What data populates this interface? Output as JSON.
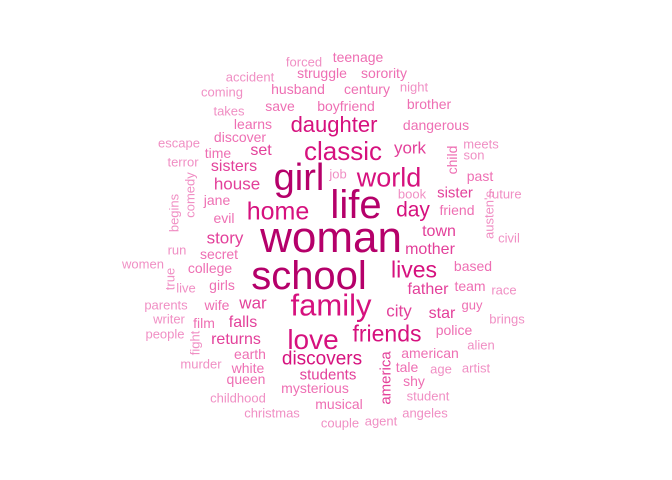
{
  "colors": {
    "dark": "#b5006a",
    "strong": "#d6117e",
    "medium": "#e3409a",
    "light": "#ee6fb3",
    "pale": "#f08fc4"
  },
  "words": [
    {
      "text": "woman",
      "tone": "dark"
    },
    {
      "text": "school",
      "tone": "dark"
    },
    {
      "text": "life",
      "tone": "dark"
    },
    {
      "text": "girl",
      "tone": "dark"
    },
    {
      "text": "family",
      "tone": "strong"
    },
    {
      "text": "world",
      "tone": "strong"
    },
    {
      "text": "classic",
      "tone": "strong"
    },
    {
      "text": "home",
      "tone": "strong"
    },
    {
      "text": "love",
      "tone": "strong"
    },
    {
      "text": "daughter",
      "tone": "strong"
    },
    {
      "text": "friends",
      "tone": "strong"
    },
    {
      "text": "lives",
      "tone": "strong"
    },
    {
      "text": "day",
      "tone": "strong"
    },
    {
      "text": "discovers",
      "tone": "strong"
    },
    {
      "text": "house",
      "tone": "medium"
    },
    {
      "text": "city",
      "tone": "medium"
    },
    {
      "text": "york",
      "tone": "medium"
    },
    {
      "text": "story",
      "tone": "medium"
    },
    {
      "text": "war",
      "tone": "medium"
    },
    {
      "text": "father",
      "tone": "medium"
    },
    {
      "text": "mother",
      "tone": "medium"
    },
    {
      "text": "town",
      "tone": "medium"
    },
    {
      "text": "sisters",
      "tone": "medium"
    },
    {
      "text": "set",
      "tone": "medium"
    },
    {
      "text": "falls",
      "tone": "medium"
    },
    {
      "text": "returns",
      "tone": "medium"
    },
    {
      "text": "star",
      "tone": "medium"
    },
    {
      "text": "america",
      "tone": "medium"
    },
    {
      "text": "sister",
      "tone": "medium"
    },
    {
      "text": "students",
      "tone": "medium"
    },
    {
      "text": "dangerous",
      "tone": "light"
    },
    {
      "text": "boyfriend",
      "tone": "light"
    },
    {
      "text": "save",
      "tone": "light"
    },
    {
      "text": "husband",
      "tone": "light"
    },
    {
      "text": "century",
      "tone": "light"
    },
    {
      "text": "struggle",
      "tone": "light"
    },
    {
      "text": "sorority",
      "tone": "light"
    },
    {
      "text": "teenage",
      "tone": "light"
    },
    {
      "text": "evil",
      "tone": "light"
    },
    {
      "text": "jane",
      "tone": "light"
    },
    {
      "text": "college",
      "tone": "light"
    },
    {
      "text": "girls",
      "tone": "light"
    },
    {
      "text": "secret",
      "tone": "light"
    },
    {
      "text": "wife",
      "tone": "light"
    },
    {
      "text": "friend",
      "tone": "light"
    },
    {
      "text": "based",
      "tone": "light"
    },
    {
      "text": "team",
      "tone": "light"
    },
    {
      "text": "police",
      "tone": "light"
    },
    {
      "text": "tale",
      "tone": "light"
    },
    {
      "text": "american",
      "tone": "light"
    },
    {
      "text": "mysterious",
      "tone": "light"
    },
    {
      "text": "musical",
      "tone": "light"
    },
    {
      "text": "white",
      "tone": "light"
    },
    {
      "text": "earth",
      "tone": "light"
    },
    {
      "text": "queen",
      "tone": "light"
    },
    {
      "text": "shy",
      "tone": "light"
    },
    {
      "text": "past",
      "tone": "light"
    },
    {
      "text": "child",
      "tone": "light"
    },
    {
      "text": "learns",
      "tone": "light"
    },
    {
      "text": "time",
      "tone": "light"
    },
    {
      "text": "discover",
      "tone": "light"
    },
    {
      "text": "brother",
      "tone": "light"
    },
    {
      "text": "film",
      "tone": "light"
    },
    {
      "text": "guy",
      "tone": "light"
    },
    {
      "text": "forced",
      "tone": "pale"
    },
    {
      "text": "accident",
      "tone": "pale"
    },
    {
      "text": "night",
      "tone": "pale"
    },
    {
      "text": "coming",
      "tone": "pale"
    },
    {
      "text": "takes",
      "tone": "pale"
    },
    {
      "text": "escape",
      "tone": "pale"
    },
    {
      "text": "terror",
      "tone": "pale"
    },
    {
      "text": "meets",
      "tone": "pale"
    },
    {
      "text": "son",
      "tone": "pale"
    },
    {
      "text": "job",
      "tone": "pale"
    },
    {
      "text": "book",
      "tone": "pale"
    },
    {
      "text": "future",
      "tone": "pale"
    },
    {
      "text": "austen's",
      "tone": "pale"
    },
    {
      "text": "civil",
      "tone": "pale"
    },
    {
      "text": "comedy",
      "tone": "pale"
    },
    {
      "text": "begins",
      "tone": "pale"
    },
    {
      "text": "run",
      "tone": "pale"
    },
    {
      "text": "women",
      "tone": "pale"
    },
    {
      "text": "true",
      "tone": "pale"
    },
    {
      "text": "live",
      "tone": "pale"
    },
    {
      "text": "parents",
      "tone": "pale"
    },
    {
      "text": "writer",
      "tone": "pale"
    },
    {
      "text": "people",
      "tone": "pale"
    },
    {
      "text": "fight",
      "tone": "pale"
    },
    {
      "text": "murder",
      "tone": "pale"
    },
    {
      "text": "childhood",
      "tone": "pale"
    },
    {
      "text": "christmas",
      "tone": "pale"
    },
    {
      "text": "couple",
      "tone": "pale"
    },
    {
      "text": "agent",
      "tone": "pale"
    },
    {
      "text": "angeles",
      "tone": "pale"
    },
    {
      "text": "student",
      "tone": "pale"
    },
    {
      "text": "age",
      "tone": "pale"
    },
    {
      "text": "artist",
      "tone": "pale"
    },
    {
      "text": "alien",
      "tone": "pale"
    },
    {
      "text": "brings",
      "tone": "pale"
    },
    {
      "text": "race",
      "tone": "pale"
    }
  ]
}
